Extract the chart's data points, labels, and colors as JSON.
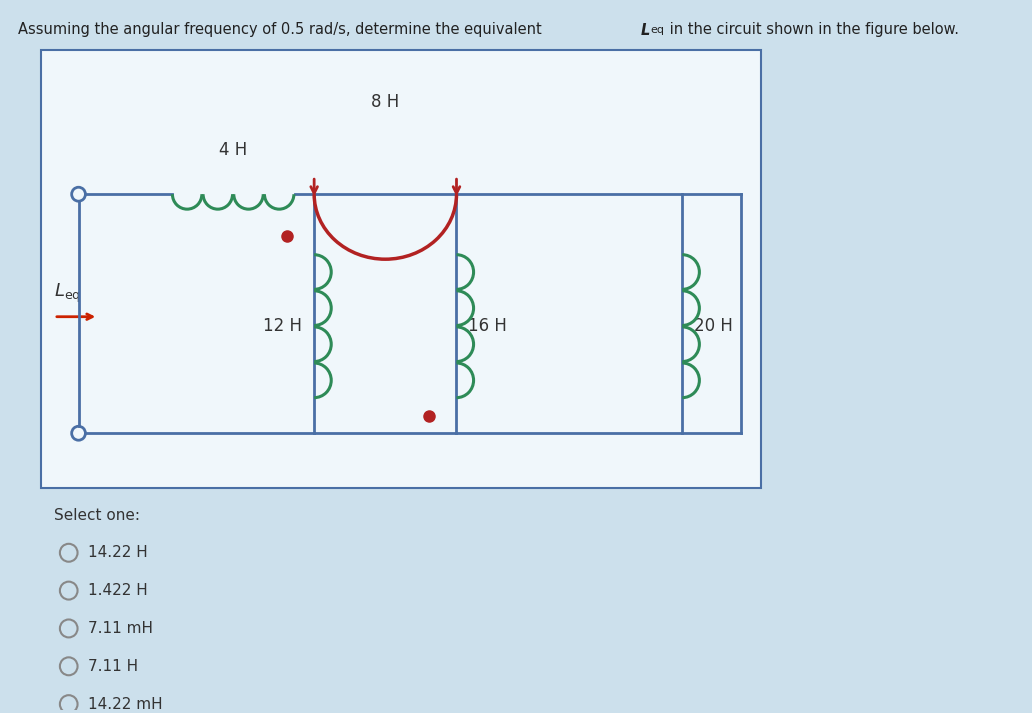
{
  "background_color": "#cce0ec",
  "circuit_bg_color": "#f0f7fb",
  "wire_color": "#4a6fa5",
  "coil_4H_color": "#2e8b57",
  "coil_8H_color": "#b22222",
  "coil_12H_color": "#2e8b57",
  "coil_16H_color": "#2e8b57",
  "coil_20H_color": "#2e8b57",
  "arrow_color": "#b22222",
  "dot_color": "#b22222",
  "leq_arrow_color": "#cc2200",
  "options": [
    "14.22 H",
    "1.422 H",
    "7.11 mH",
    "7.11 H",
    "14.22 mH"
  ],
  "select_one_text": "Select one:"
}
